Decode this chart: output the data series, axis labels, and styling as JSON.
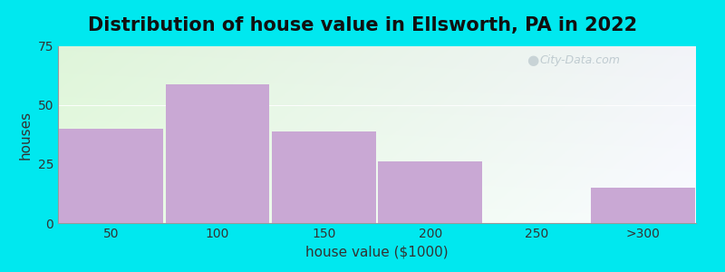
{
  "title": "Distribution of house value in Ellsworth, PA in 2022",
  "xlabel": "house value ($1000)",
  "ylabel": "houses",
  "categories": [
    "50",
    "100",
    "150",
    "200",
    "250",
    ">300"
  ],
  "values": [
    40,
    59,
    39,
    26,
    0,
    15
  ],
  "bar_color": "#c9a8d4",
  "ylim": [
    0,
    75
  ],
  "yticks": [
    0,
    25,
    50,
    75
  ],
  "background_outer": "#00e8ef",
  "title_fontsize": 15,
  "axis_label_fontsize": 11,
  "tick_fontsize": 10,
  "watermark_text": "City-Data.com",
  "figwidth": 8.0,
  "figheight": 3.0
}
